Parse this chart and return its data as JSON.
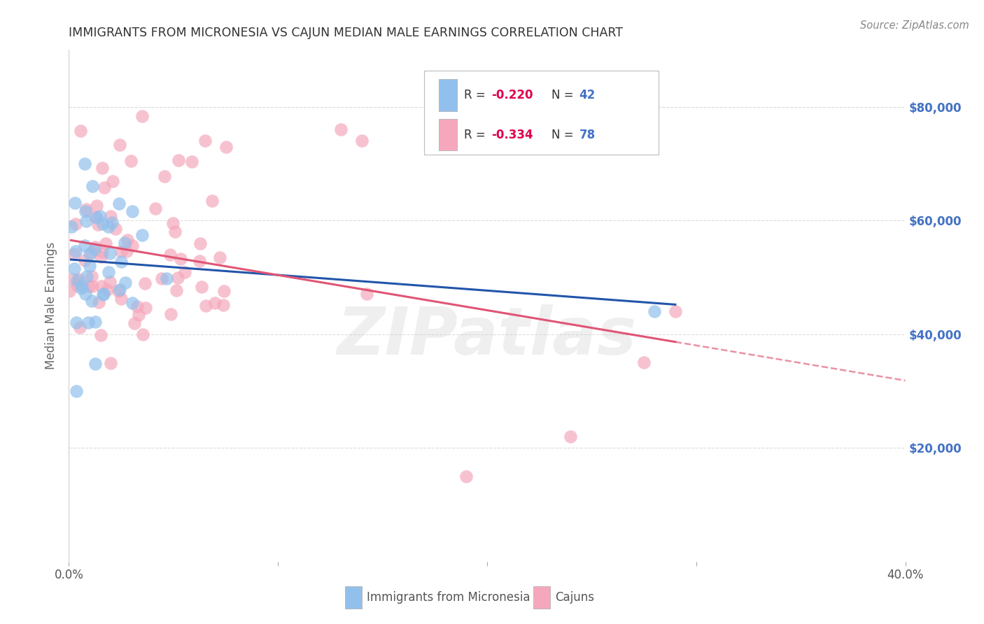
{
  "title": "IMMIGRANTS FROM MICRONESIA VS CAJUN MEDIAN MALE EARNINGS CORRELATION CHART",
  "source": "Source: ZipAtlas.com",
  "ylabel": "Median Male Earnings",
  "xtick_positions": [
    0.0,
    0.1,
    0.2,
    0.3,
    0.4
  ],
  "xtick_labels_show": [
    "0.0%",
    "",
    "",
    "",
    "40.0%"
  ],
  "ytick_values": [
    20000,
    40000,
    60000,
    80000
  ],
  "ytick_labels": [
    "$20,000",
    "$40,000",
    "$60,000",
    "$80,000"
  ],
  "xmin": 0.0,
  "xmax": 0.4,
  "ymin": 0,
  "ymax": 90000,
  "legend_label1": "Immigrants from Micronesia",
  "legend_label2": "Cajuns",
  "R1": -0.22,
  "N1": 42,
  "R2": -0.334,
  "N2": 78,
  "color_blue": "#92C0EC",
  "color_pink": "#F5A8BC",
  "line_color_blue": "#2255AA",
  "line_color_pink": "#E05575",
  "watermark_text": "ZIPatlas",
  "background_color": "#ffffff",
  "grid_color": "#dddddd",
  "title_color": "#333333",
  "right_tick_color": "#4472c4",
  "legend_R_color": "#E0004C",
  "legend_N_color": "#4472c4"
}
